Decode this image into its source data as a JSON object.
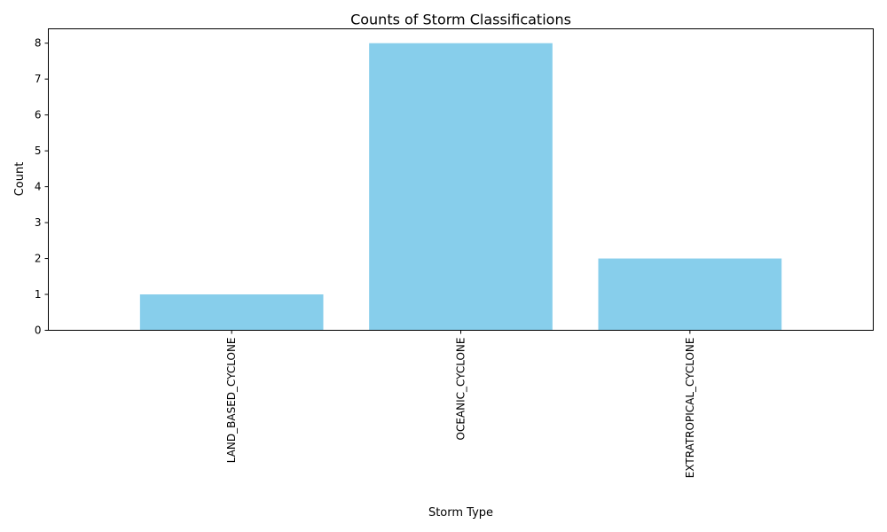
{
  "chart_data": {
    "type": "bar",
    "title": "Counts of Storm Classifications",
    "xlabel": "Storm Type",
    "ylabel": "Count",
    "categories": [
      "LAND_BASED_CYCLONE",
      "OCEANIC_CYCLONE",
      "EXTRATROPICAL_CYCLONE"
    ],
    "values": [
      1,
      8,
      2
    ],
    "ylim": [
      0,
      8.4
    ],
    "yticks": [
      "0",
      "1",
      "2",
      "3",
      "4",
      "5",
      "6",
      "7",
      "8"
    ],
    "bar_color": "#87ceeb",
    "grid": false,
    "legend": "none",
    "x_tick_rotation": "vertical"
  }
}
